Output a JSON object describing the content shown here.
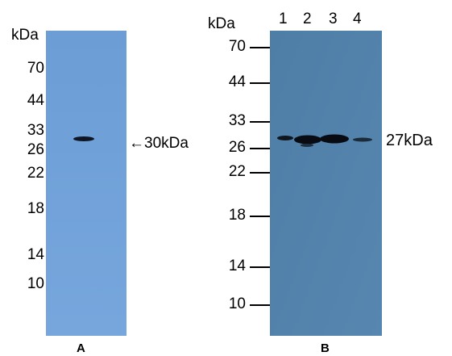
{
  "panel_a": {
    "label": "A",
    "kda_header": "kDa",
    "markers": [
      "70",
      "44",
      "33",
      "26",
      "22",
      "18",
      "14",
      "10"
    ],
    "arrow_annotation": "←30kDa",
    "blot_color": "#6e9fd6"
  },
  "panel_b": {
    "label": "B",
    "kda_header": "kDa",
    "lanes": [
      "1",
      "2",
      "3",
      "4"
    ],
    "markers": [
      "70",
      "44",
      "33",
      "26",
      "22",
      "18",
      "14",
      "10"
    ],
    "band_annotation": "27kDa",
    "blot_color": "#4f7fa8"
  }
}
